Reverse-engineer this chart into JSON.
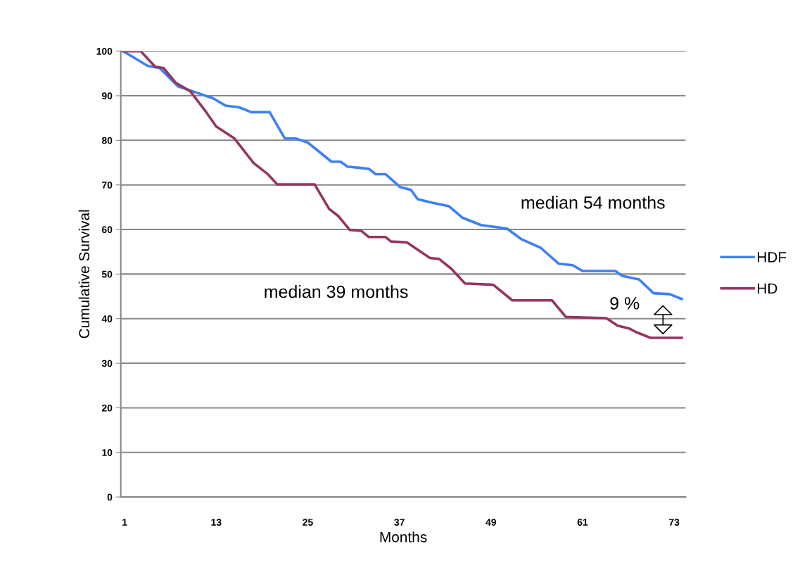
{
  "chart_data": {
    "type": "line",
    "xlabel": "Months",
    "ylabel": "Cumulative Survival",
    "xlim": [
      0.5,
      74.5
    ],
    "xticks": [
      1,
      13,
      25,
      37,
      49,
      61,
      73
    ],
    "ylim": [
      0,
      100
    ],
    "yticks": [
      0,
      10,
      20,
      30,
      40,
      50,
      60,
      70,
      80,
      90,
      100
    ],
    "grid": "y",
    "legend": "right",
    "marker": "none",
    "line_style": "solid",
    "series": [
      {
        "name": "HDF",
        "color": "#3f7ff5",
        "x": [
          0.8,
          4.0,
          5.6,
          8.0,
          9.9,
          12.6,
          14.2,
          16.0,
          17.6,
          20.0,
          22.0,
          23.4,
          25.0,
          28.1,
          29.3,
          30.2,
          33.0,
          33.9,
          35.2,
          37.1,
          38.5,
          39.4,
          41.3,
          43.5,
          45.3,
          47.7,
          51.1,
          53.0,
          55.5,
          57.9,
          59.7,
          61.0,
          65.3,
          66.2,
          68.4,
          70.3,
          72.4,
          74.0
        ],
        "values": [
          100,
          96.7,
          96.2,
          92.1,
          91.0,
          89.4,
          87.8,
          87.4,
          86.3,
          86.3,
          80.4,
          80.4,
          79.5,
          75.2,
          75.2,
          74.1,
          73.6,
          72.4,
          72.4,
          69.5,
          68.9,
          66.8,
          66.0,
          65.2,
          62.6,
          61.0,
          60.2,
          57.8,
          55.9,
          52.3,
          52.0,
          50.7,
          50.7,
          49.6,
          48.8,
          45.7,
          45.5,
          44.4
        ]
      },
      {
        "name": "HD",
        "color": "#953560",
        "x": [
          0.8,
          3.1,
          5.0,
          6.1,
          7.7,
          9.6,
          11.7,
          13.0,
          15.4,
          17.9,
          19.7,
          21.0,
          25.9,
          27.8,
          29.0,
          30.5,
          32.0,
          33.0,
          35.2,
          35.9,
          38.0,
          41.0,
          42.2,
          43.8,
          45.6,
          49.3,
          51.8,
          57.0,
          58.8,
          64.1,
          65.6,
          67.1,
          68.0,
          69.9,
          74.0
        ],
        "values": [
          100,
          100,
          96.5,
          96.2,
          92.9,
          91.0,
          86.3,
          83.1,
          80.4,
          74.9,
          72.5,
          70.1,
          70.1,
          64.6,
          63.0,
          59.9,
          59.7,
          58.3,
          58.3,
          57.3,
          57.1,
          53.6,
          53.4,
          51.2,
          47.9,
          47.6,
          44.1,
          44.1,
          40.4,
          40.1,
          38.4,
          37.8,
          37.0,
          35.7,
          35.7
        ]
      }
    ],
    "annotations": [
      "median 54 months",
      "median 39 months",
      "9 %"
    ]
  }
}
